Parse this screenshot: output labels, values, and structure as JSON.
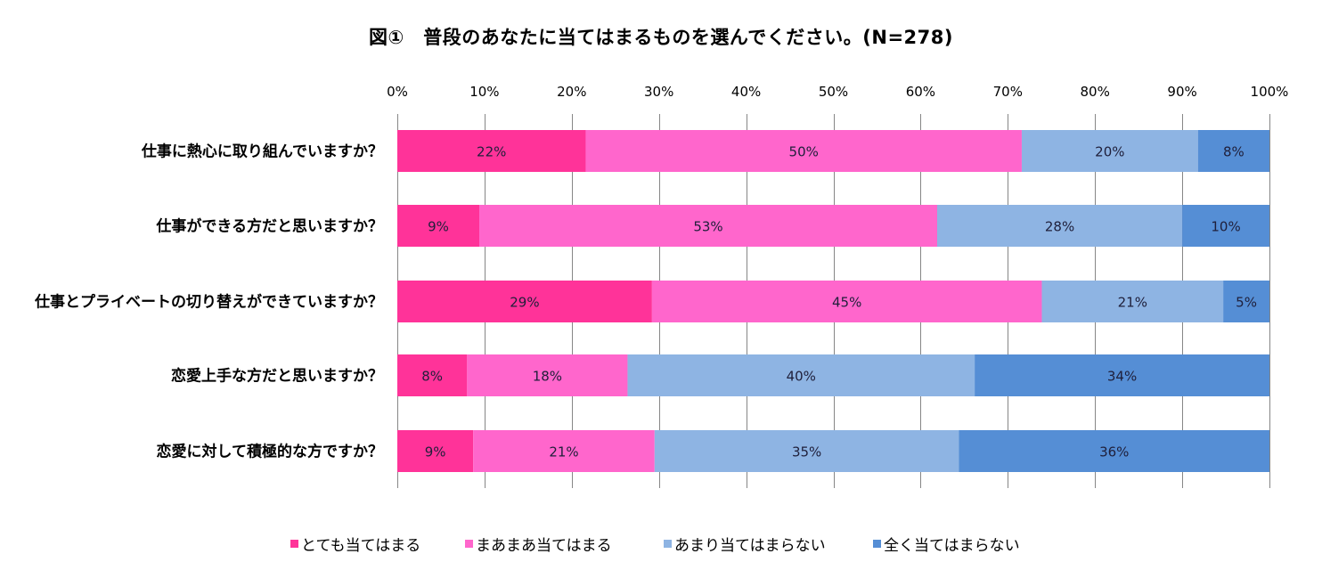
{
  "chart_data": {
    "type": "bar",
    "orientation": "horizontal",
    "stacked": "percent",
    "title": "図①　普段のあなたに当てはまるものを選んでください。(N=278)",
    "xlabel": "",
    "ylabel": "",
    "xlim": [
      0,
      100
    ],
    "x_ticks": [
      "0%",
      "10%",
      "20%",
      "30%",
      "40%",
      "50%",
      "60%",
      "70%",
      "80%",
      "90%",
      "100%"
    ],
    "grid": true,
    "legend_position": "bottom",
    "categories": [
      "仕事に熱心に取り組んでいますか？",
      "仕事ができる方だと思いますか？",
      "仕事とプライベートの切り替えができていますか？",
      "恋愛上手な方だと思いますか？",
      "恋愛に対して積極的な方ですか？"
    ],
    "series": [
      {
        "name": "とても当てはまる",
        "color": "#ff3399",
        "values": [
          21.6,
          9.4,
          29.2,
          8.0,
          8.7
        ],
        "labels": [
          "22%",
          "9%",
          "29%",
          "8%",
          "9%"
        ]
      },
      {
        "name": "まあまあ当てはまる",
        "color": "#ff66cc",
        "values": [
          50.0,
          52.5,
          44.7,
          18.4,
          20.8
        ],
        "labels": [
          "50%",
          "53%",
          "45%",
          "18%",
          "21%"
        ]
      },
      {
        "name": "あまり当てはまらない",
        "color": "#8eb4e3",
        "values": [
          20.2,
          28.1,
          20.8,
          39.8,
          34.9
        ],
        "labels": [
          "20%",
          "28%",
          "21%",
          "40%",
          "35%"
        ]
      },
      {
        "name": "全く当てはまらない",
        "color": "#558ed5",
        "values": [
          8.2,
          10.0,
          5.3,
          33.8,
          35.6
        ],
        "labels": [
          "8%",
          "10%",
          "5%",
          "34%",
          "36%"
        ]
      }
    ]
  }
}
